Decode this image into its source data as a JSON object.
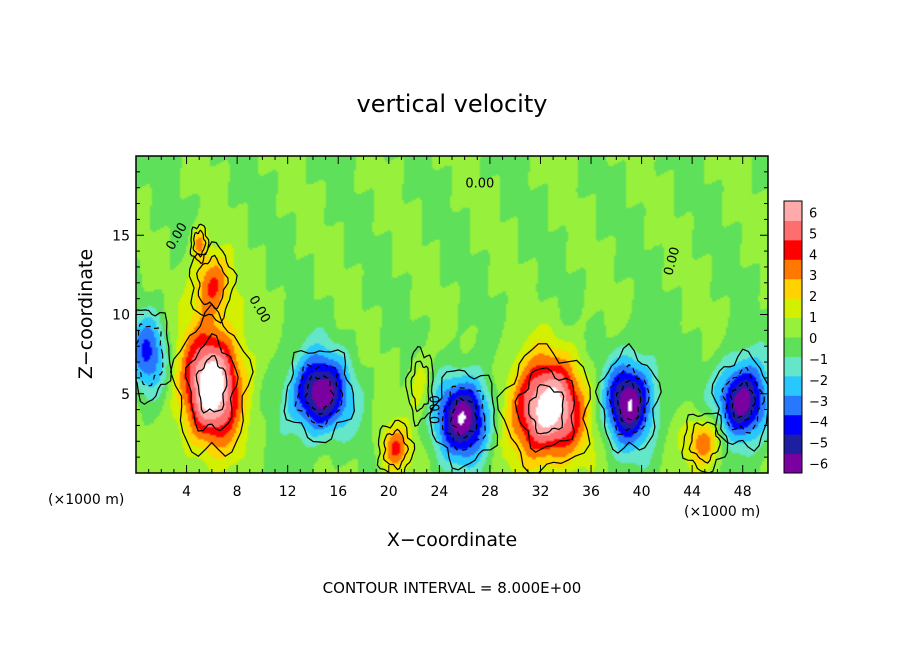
{
  "chart_data": {
    "type": "heatmap",
    "title": "vertical velocity",
    "xlabel": "X−coordinate",
    "ylabel": "Z−coordinate",
    "x_unit": "(×1000 m)",
    "x_unit_right": "(×1000 m)",
    "xlim": [
      0,
      50
    ],
    "ylim": [
      0,
      20
    ],
    "x_ticks": [
      4,
      8,
      12,
      16,
      20,
      24,
      28,
      32,
      36,
      40,
      44,
      48
    ],
    "y_ticks": [
      5,
      10,
      15
    ],
    "colorbar": {
      "min": -6,
      "max": 6,
      "ticks": [
        "6",
        "5",
        "4",
        "3",
        "2",
        "1",
        "0",
        "−1",
        "−2",
        "−3",
        "−4",
        "−5",
        "−6"
      ]
    },
    "contour_labels": [
      "0.00",
      "0.00",
      "0.00",
      "0.00",
      "0.00"
    ],
    "contour_interval_text": "CONTOUR INTERVAL = 8.000E+00",
    "features": [
      {
        "kind": "updraft",
        "x": 6.0,
        "z": 5.5,
        "sx": 2.5,
        "sz": 3.8,
        "w": 8
      },
      {
        "kind": "updraft",
        "x": 6.0,
        "z": 12.0,
        "sx": 1.5,
        "sz": 2.0,
        "w": 4
      },
      {
        "kind": "updraft",
        "x": 5.0,
        "z": 14.5,
        "sx": 0.6,
        "sz": 1.0,
        "w": 3
      },
      {
        "kind": "downdraft",
        "x": 14.5,
        "z": 5.0,
        "sx": 2.3,
        "sz": 2.5,
        "w": -7
      },
      {
        "kind": "downdraft",
        "x": 26.0,
        "z": 3.5,
        "sx": 2.2,
        "sz": 2.6,
        "w": -7
      },
      {
        "kind": "updraft",
        "x": 32.5,
        "z": 4.0,
        "sx": 3.0,
        "sz": 3.3,
        "w": 8
      },
      {
        "kind": "downdraft",
        "x": 39.0,
        "z": 4.5,
        "sx": 2.0,
        "sz": 2.7,
        "w": -7
      },
      {
        "kind": "downdraft",
        "x": 48.0,
        "z": 4.5,
        "sx": 2.0,
        "sz": 2.5,
        "w": -7
      },
      {
        "kind": "updraft",
        "x": 20.5,
        "z": 1.5,
        "sx": 1.2,
        "sz": 1.5,
        "w": 4
      },
      {
        "kind": "updraft",
        "x": 45.0,
        "z": 2.0,
        "sx": 1.5,
        "sz": 1.6,
        "w": 4
      },
      {
        "kind": "downdraft",
        "x": 1.0,
        "z": 7.5,
        "sx": 1.5,
        "sz": 2.5,
        "w": -4
      },
      {
        "kind": "updraft",
        "x": 22.5,
        "z": 5.5,
        "sx": 0.9,
        "sz": 2.0,
        "w": 2
      }
    ]
  }
}
